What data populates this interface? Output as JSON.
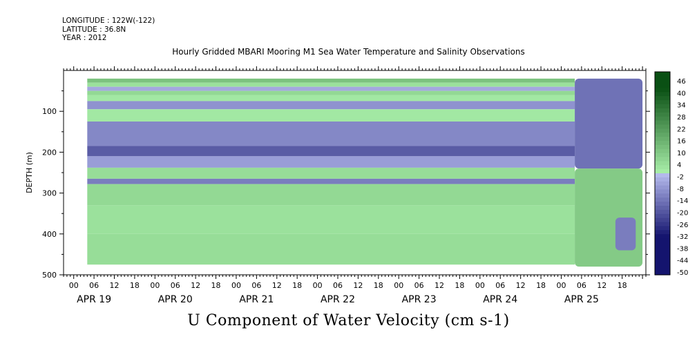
{
  "header": {
    "longitude": "LONGITUDE : 122W(-122)",
    "latitude": "LATITUDE : 36.8N",
    "year": "YEAR : 2012",
    "plot_title": "Hourly Gridded MBARI Mooring M1 Sea Water Temperature and Salinity Observations",
    "variable_title": "U Component of Water Velocity (cm s-1)"
  },
  "chart_data": {
    "type": "heatmap",
    "title": "Hourly Gridded MBARI Mooring M1 Sea Water Temperature and Salinity Observations",
    "variable": "U Component of Water Velocity (cm s-1)",
    "ylabel": "DEPTH (m)",
    "ylim": [
      500,
      0
    ],
    "y_ticks": [
      100,
      200,
      300,
      400,
      500
    ],
    "x_hour_ticks": [
      "00",
      "06",
      "12",
      "18",
      "00",
      "06",
      "12",
      "18",
      "00",
      "06",
      "12",
      "18",
      "00",
      "06",
      "12",
      "18",
      "00",
      "06",
      "12",
      "18",
      "00",
      "06",
      "12",
      "18",
      "00",
      "06",
      "12",
      "18"
    ],
    "x_day_labels": [
      "APR 19",
      "APR 20",
      "APR 21",
      "APR 22",
      "APR 23",
      "APR 24",
      "APR 25"
    ],
    "data_start_hour": 4,
    "data_end_hour": 168,
    "data_gap_start_hour": 148,
    "depth_bands": [
      {
        "top": 20,
        "bottom": 30,
        "value": 12
      },
      {
        "top": 30,
        "bottom": 40,
        "value": 4
      },
      {
        "top": 40,
        "bottom": 50,
        "value": -4
      },
      {
        "top": 50,
        "bottom": 60,
        "value": 6
      },
      {
        "top": 60,
        "bottom": 75,
        "value": 2
      },
      {
        "top": 75,
        "bottom": 95,
        "value": -8
      },
      {
        "top": 95,
        "bottom": 125,
        "value": 2
      },
      {
        "top": 125,
        "bottom": 185,
        "value": -10
      },
      {
        "top": 185,
        "bottom": 210,
        "value": -18
      },
      {
        "top": 210,
        "bottom": 238,
        "value": -6
      },
      {
        "top": 238,
        "bottom": 265,
        "value": 5
      },
      {
        "top": 265,
        "bottom": 278,
        "value": -12
      },
      {
        "top": 278,
        "bottom": 330,
        "value": 6
      },
      {
        "top": 330,
        "bottom": 400,
        "value": 4
      },
      {
        "top": 400,
        "bottom": 475,
        "value": 5
      }
    ],
    "late_period_patches": [
      {
        "hour_start": 148,
        "hour_end": 168,
        "depth_top": 20,
        "depth_bottom": 240,
        "value": -14
      },
      {
        "hour_start": 148,
        "hour_end": 168,
        "depth_top": 240,
        "depth_bottom": 480,
        "value": 10
      },
      {
        "hour_start": 160,
        "hour_end": 166,
        "depth_top": 360,
        "depth_bottom": 440,
        "value": -12
      }
    ],
    "colorbar_labels": [
      46,
      40,
      34,
      28,
      22,
      16,
      10,
      4,
      -2,
      -8,
      -14,
      -20,
      -26,
      -32,
      -38,
      -44,
      -50
    ],
    "colorbar_min": -50,
    "colorbar_max": 50
  }
}
